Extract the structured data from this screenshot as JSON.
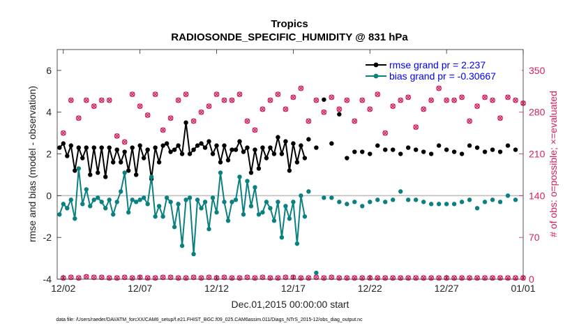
{
  "chart_data": {
    "type": "line",
    "title_line1": "Tropics",
    "title_line2": "RADIOSONDE_SPECIFIC_HUMIDITY @ 831 hPa",
    "xlabel": "Dec.01,2015 00:00:00 start",
    "ylabel_left": "rmse and bias (model - observation)",
    "ylabel_right": "# of obs: o=possible; ×=evaluated",
    "ylim_left": [
      -4,
      7
    ],
    "ylim_right": [
      0,
      385
    ],
    "xlim_days": [
      0.6,
      31.0
    ],
    "left_ticks": [
      "-4",
      "-2",
      "0",
      "2",
      "4",
      "6"
    ],
    "left_tick_values": [
      -4,
      -2,
      0,
      2,
      4,
      6
    ],
    "right_ticks": [
      "0",
      "70",
      "140",
      "210",
      "280",
      "350"
    ],
    "right_tick_values": [
      0,
      70,
      140,
      210,
      280,
      350
    ],
    "x_ticks": [
      "12/02",
      "12/07",
      "12/12",
      "12/17",
      "12/22",
      "12/27",
      "01/01"
    ],
    "x_tick_values": [
      1,
      6,
      11,
      16,
      21,
      26,
      31
    ],
    "colors": {
      "rmse": "#000000",
      "bias": "#0a8080",
      "obs": "#d6205b",
      "zero": "#bbbbbb"
    },
    "series": [
      {
        "name": "rmse grand pr = 2.237",
        "x": [
          0.5,
          0.75,
          1.0,
          1.25,
          1.5,
          1.75,
          2.0,
          2.25,
          2.5,
          2.75,
          3.0,
          3.25,
          3.5,
          3.75,
          4.0,
          4.25,
          4.5,
          4.75,
          5.0,
          5.25,
          5.5,
          5.75,
          6.0,
          6.25,
          6.5,
          6.75,
          7.0,
          7.25,
          7.5,
          7.75,
          8.0,
          8.25,
          8.5,
          8.75,
          9.0,
          9.25,
          9.5,
          9.75,
          10.0,
          10.25,
          10.5,
          10.75,
          11.0,
          11.25,
          11.5,
          11.75,
          12.0,
          12.25,
          12.5,
          12.75,
          13.0,
          13.25,
          13.5,
          13.75,
          14.0,
          14.25,
          14.5,
          14.75,
          15.0,
          15.25,
          15.5,
          15.75,
          16.0,
          16.25,
          16.5,
          16.75,
          17.0,
          17.5,
          18.0,
          18.5,
          19.0,
          19.5,
          20.0,
          20.5,
          21.0,
          21.5,
          22.0,
          22.5,
          23.0,
          23.5,
          24.0,
          24.5,
          25.0,
          25.5,
          26.0,
          26.5,
          27.0,
          27.5,
          28.0,
          28.5,
          29.0,
          29.5,
          30.0,
          30.5
        ],
        "values": [
          2.6,
          2.3,
          2.5,
          1.9,
          2.4,
          1.2,
          2.3,
          1.8,
          2.3,
          1.0,
          2.3,
          1.1,
          2.3,
          0.9,
          2.3,
          1.6,
          2.2,
          1.6,
          2.1,
          1.2,
          2.3,
          1.0,
          2.4,
          1.8,
          2.2,
          0.8,
          2.3,
          1.6,
          2.4,
          2.5,
          2.1,
          2.2,
          2.4,
          2.0,
          3.5,
          2.0,
          2.2,
          2.4,
          2.5,
          2.3,
          2.6,
          2.0,
          2.4,
          1.6,
          2.4,
          1.7,
          2.2,
          2.2,
          2.6,
          2.1,
          2.3,
          1.1,
          2.2,
          1.3,
          2.3,
          1.8,
          2.3,
          2.0,
          2.8,
          2.0,
          2.6,
          1.2,
          2.5,
          1.6,
          2.4,
          1.8,
          2.7,
          2.3,
          4.6,
          2.5,
          3.9,
          1.8,
          2.1,
          2.1,
          2.0,
          2.4,
          2.2,
          2.2,
          2.0,
          2.3,
          2.2,
          2.1,
          2.0,
          2.4,
          2.2,
          2.1,
          2.0,
          2.4,
          2.3,
          2.1,
          2.2,
          2.1,
          2.4,
          2.2
        ],
        "gap_after_x": 16.75
      },
      {
        "name": "bias grand pr = -0.30667",
        "x": [
          0.5,
          0.75,
          1.0,
          1.25,
          1.5,
          1.75,
          2.0,
          2.25,
          2.5,
          2.75,
          3.0,
          3.25,
          3.5,
          3.75,
          4.0,
          4.25,
          4.5,
          4.75,
          5.0,
          5.25,
          5.5,
          5.75,
          6.0,
          6.25,
          6.5,
          6.75,
          7.0,
          7.25,
          7.5,
          7.75,
          8.0,
          8.25,
          8.5,
          8.75,
          9.0,
          9.25,
          9.5,
          9.75,
          10.0,
          10.25,
          10.5,
          10.75,
          11.0,
          11.25,
          11.5,
          11.75,
          12.0,
          12.25,
          12.5,
          12.75,
          13.0,
          13.25,
          13.5,
          13.75,
          14.0,
          14.25,
          14.5,
          14.75,
          15.0,
          15.25,
          15.5,
          15.75,
          16.0,
          16.25,
          16.5,
          16.75,
          17.0,
          17.5,
          18.0,
          18.5,
          19.0,
          19.5,
          20.0,
          20.5,
          21.0,
          21.5,
          22.0,
          22.5,
          23.0,
          23.5,
          24.0,
          24.5,
          25.0,
          25.5,
          26.0,
          26.5,
          27.0,
          27.5,
          28.0,
          28.5,
          29.0,
          29.5,
          30.0,
          30.5
        ],
        "values": [
          -0.2,
          -0.9,
          -0.4,
          -0.6,
          -0.2,
          -1.1,
          1.3,
          -0.4,
          0.3,
          -0.5,
          -0.2,
          -0.1,
          -0.3,
          -0.6,
          -0.2,
          -0.9,
          -0.3,
          0.2,
          1.1,
          -0.8,
          -0.2,
          -0.3,
          -0.2,
          -0.1,
          -0.4,
          0.9,
          -1.0,
          -0.5,
          -1.0,
          -0.1,
          -0.3,
          -1.5,
          -0.4,
          -2.4,
          -0.2,
          -0.1,
          -2.8,
          -0.2,
          -0.6,
          -0.3,
          -1.6,
          -0.1,
          -0.8,
          1.1,
          -0.3,
          -1.2,
          -0.3,
          -0.2,
          0.9,
          -0.9,
          0.7,
          -0.5,
          0.4,
          -0.9,
          -0.8,
          -0.3,
          -0.6,
          -1.2,
          -0.3,
          -2.0,
          -0.5,
          -1.1,
          -0.3,
          -2.3,
          0.0,
          -1.0,
          0.2,
          -3.7,
          -0.1,
          -0.1,
          -0.3,
          -0.4,
          -0.3,
          -0.5,
          -0.3,
          -0.2,
          -0.3,
          -0.2,
          0.2,
          -0.2,
          -0.2,
          -0.3,
          -0.4,
          -0.4,
          -0.4,
          -0.4,
          -0.3,
          -0.2,
          -0.6,
          -0.3,
          -0.2,
          -0.3,
          0.0,
          -0.2
        ],
        "gap_after_x": 16.75
      }
    ],
    "obs_possible_right": [
      245,
      300,
      270,
      300,
      290,
      300,
      300,
      240,
      230,
      310,
      290,
      275,
      310,
      250,
      270,
      300,
      310,
      265,
      280,
      290,
      310,
      300,
      300,
      310,
      265,
      250,
      285,
      300,
      310,
      285,
      305,
      320,
      265,
      300,
      280,
      305,
      285,
      300,
      265,
      300,
      285,
      310,
      245,
      290,
      300,
      305,
      255,
      285,
      300,
      320,
      300,
      300,
      305,
      265,
      290,
      305,
      300,
      270,
      305,
      300,
      295,
      320
    ],
    "obs_evaluated_right": [
      2,
      3,
      2,
      4,
      3,
      3,
      2,
      2,
      3,
      2,
      3,
      2,
      2,
      3,
      3,
      2,
      2,
      3,
      2,
      3,
      2,
      3,
      2,
      2,
      3,
      2,
      3,
      2,
      2,
      3,
      3,
      2,
      2,
      3,
      2,
      3,
      2,
      2,
      2,
      2,
      2,
      2,
      2,
      2,
      2,
      2,
      2,
      2,
      2,
      2,
      2,
      2,
      2,
      2,
      2,
      2,
      2,
      2,
      2,
      2,
      2,
      2
    ]
  },
  "footer": "data file: /Users/raeder/DAI/ATM_forcXX/CAM6_setup/f.e21.FHIST_BGC.f09_025.CAM6assim.011/Diags_NTrS_2015-12/obs_diag_output.nc"
}
